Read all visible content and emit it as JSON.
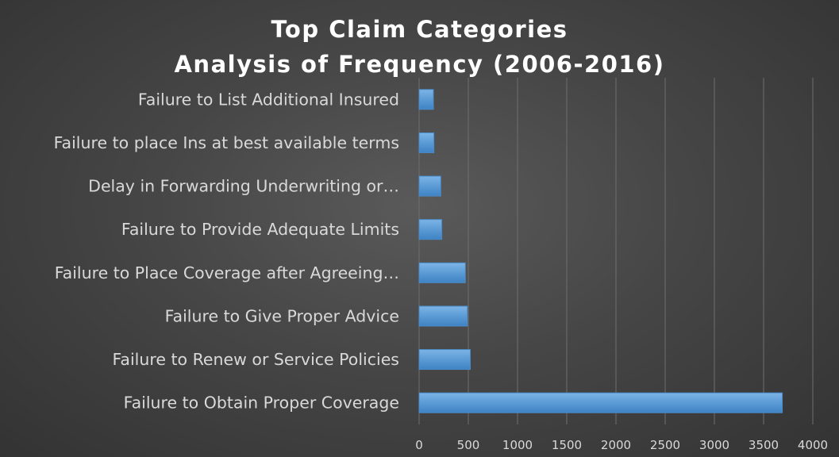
{
  "chart_data": {
    "type": "bar",
    "orientation": "horizontal",
    "title": "Top Claim Categories",
    "subtitle": "Analysis of Frequency (2006-2016)",
    "categories": [
      "Failure to Obtain Proper Coverage",
      "Failure to Renew or Service Policies",
      "Failure to Give Proper Advice",
      "Failure to Place Coverage after Agreeing…",
      "Failure to Provide Adequate Limits",
      "Delay in Forwarding Underwriting or…",
      "Failure to place Ins at best available terms",
      "Failure to List Additional Insured"
    ],
    "values": [
      3690,
      520,
      490,
      470,
      230,
      220,
      150,
      145
    ],
    "xlim": [
      0,
      4000
    ],
    "xticks": [
      "0",
      "500",
      "1000",
      "1500",
      "2000",
      "2500",
      "3000",
      "3500",
      "4000"
    ],
    "xlabel": "",
    "ylabel": "",
    "grid": "vertical",
    "legend": "none",
    "bar_color": "#5b9bd5",
    "background_color": "#404040"
  }
}
